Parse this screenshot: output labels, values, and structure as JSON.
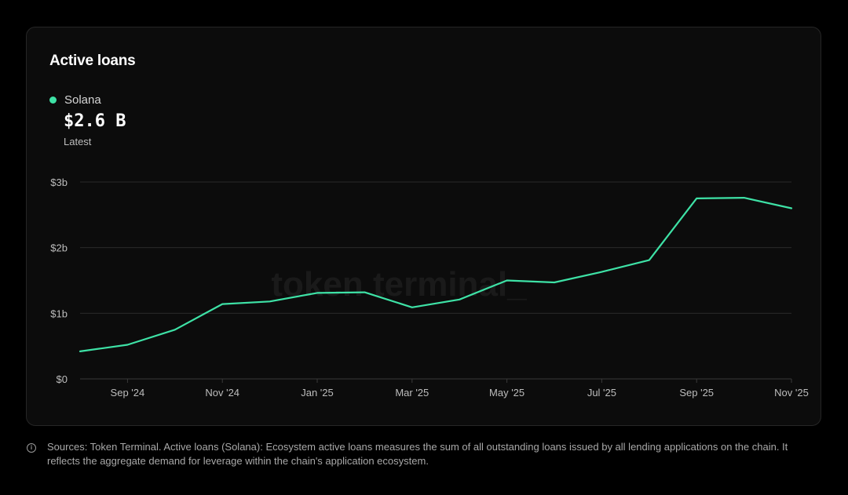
{
  "card": {
    "title": "Active loans",
    "legend_label": "Solana",
    "latest_value": "$2.6 B",
    "latest_caption": "Latest",
    "watermark": "token terminal_"
  },
  "footer": {
    "text": "Sources: Token Terminal. Active loans (Solana): Ecosystem active loans measures the sum of all outstanding loans issued by all lending applications on the chain. It reflects the aggregate demand for leverage within the chain's application ecosystem."
  },
  "colors": {
    "series": "#3ee2a6",
    "grid": "#2a2a2a",
    "axis_text": "#bdbdbd"
  },
  "icons": {
    "info": "info-circle-icon"
  },
  "chart_data": {
    "type": "line",
    "title": "Active loans",
    "xlabel": "",
    "ylabel": "",
    "ylim": [
      0,
      3
    ],
    "yticks": [
      0,
      1,
      2,
      3
    ],
    "ytick_labels": [
      "$0",
      "$1b",
      "$2b",
      "$3b"
    ],
    "xticks": [
      "2024-09",
      "2024-11",
      "2025-01",
      "2025-03",
      "2025-05",
      "2025-07",
      "2025-09",
      "2025-11"
    ],
    "xtick_labels": [
      "Sep '24",
      "Nov '24",
      "Jan '25",
      "Mar '25",
      "May '25",
      "Jul '25",
      "Sep '25",
      "Nov '25"
    ],
    "grid": true,
    "legend": "top-left",
    "series": [
      {
        "name": "Solana",
        "x": [
          "2024-08",
          "2024-09",
          "2024-10",
          "2024-11",
          "2024-12",
          "2025-01",
          "2025-02",
          "2025-03",
          "2025-04",
          "2025-05",
          "2025-06",
          "2025-07",
          "2025-08",
          "2025-09",
          "2025-10",
          "2025-11"
        ],
        "values": [
          0.42,
          0.52,
          0.75,
          1.14,
          1.18,
          1.31,
          1.32,
          1.09,
          1.21,
          1.5,
          1.47,
          1.63,
          1.81,
          2.75,
          2.76,
          2.6
        ]
      }
    ]
  }
}
